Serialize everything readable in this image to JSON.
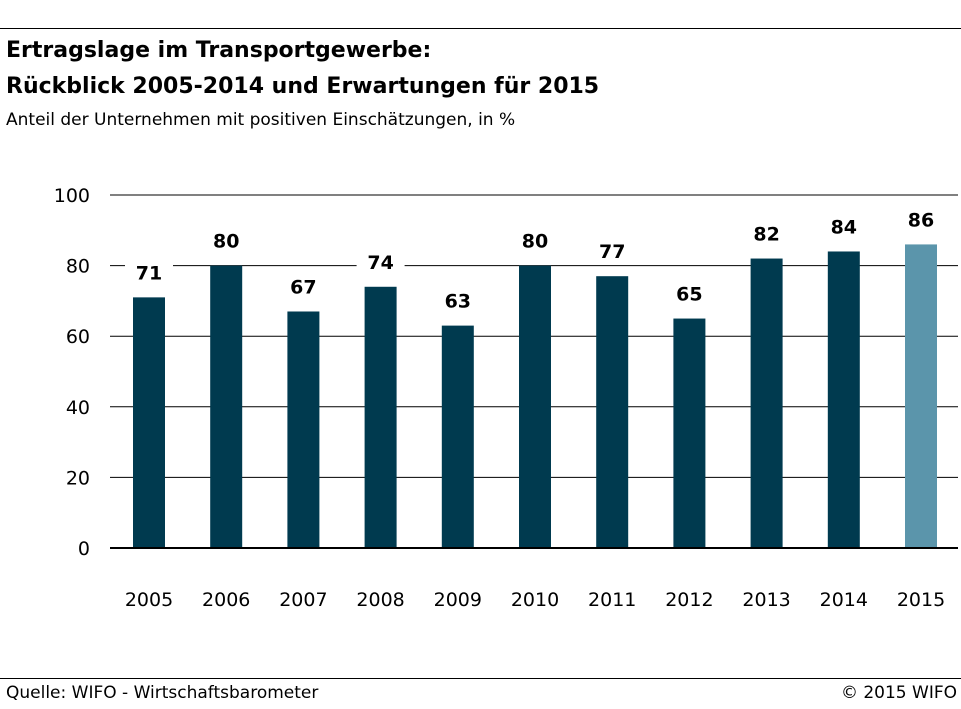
{
  "header": {
    "title_line1": "Ertragslage im Transportgewerbe:",
    "title_line2": "Rückblick 2005-2014 und Erwartungen für 2015",
    "subtitle": "Anteil der Unternehmen mit positiven Einschätzungen, in %"
  },
  "footer": {
    "source": "Quelle: WIFO - Wirtschaftsbarometer",
    "copyright": "© 2015 WIFO"
  },
  "chart_data": {
    "type": "bar",
    "categories": [
      "2005",
      "2006",
      "2007",
      "2008",
      "2009",
      "2010",
      "2011",
      "2012",
      "2013",
      "2014",
      "2015"
    ],
    "values": [
      71,
      80,
      67,
      74,
      63,
      80,
      77,
      65,
      82,
      84,
      86
    ],
    "ylim": [
      0,
      100
    ],
    "yticks": [
      0,
      20,
      40,
      60,
      80,
      100
    ],
    "grid": true,
    "legend": "none",
    "colors": {
      "actual": "#003a4f",
      "expectation": "#5b95ab",
      "grid": "#000000"
    },
    "highlight_category": "2015"
  }
}
